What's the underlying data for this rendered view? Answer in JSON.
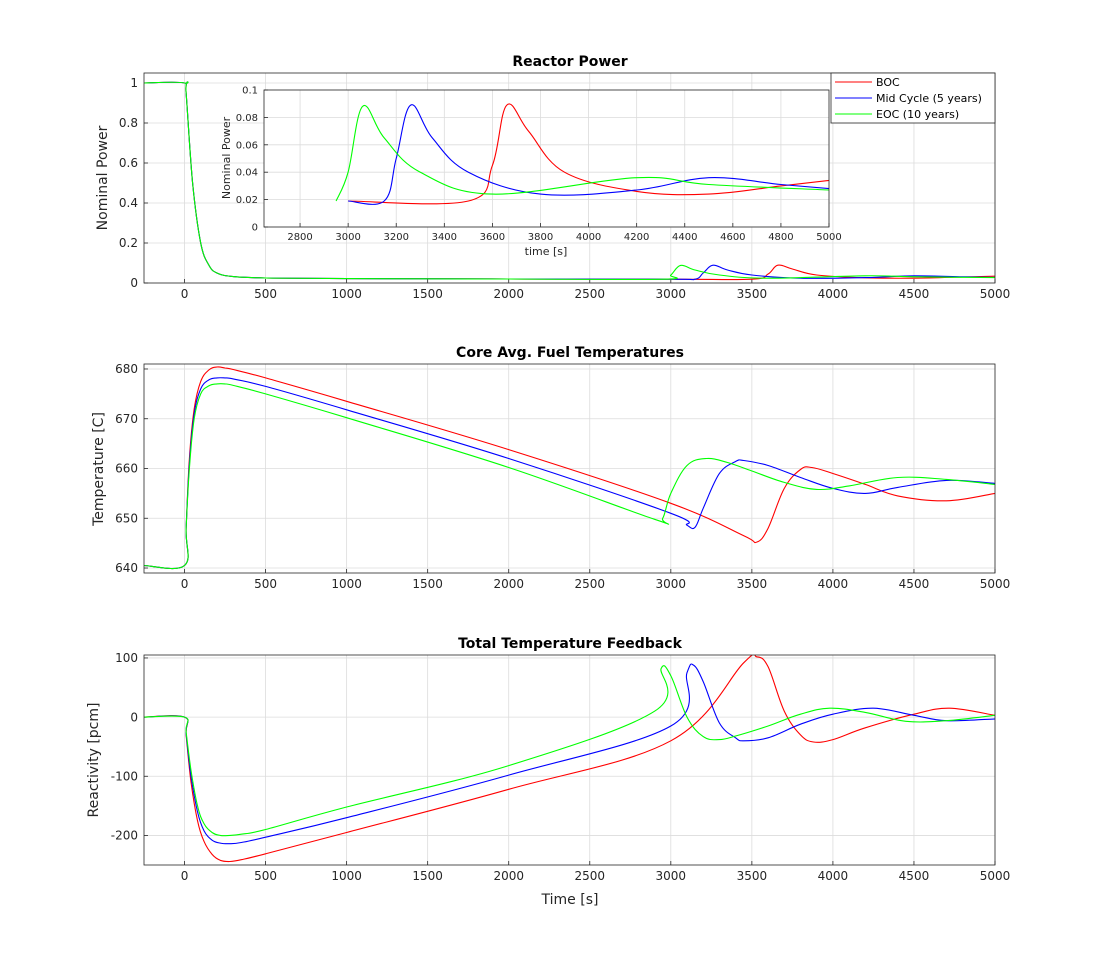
{
  "chart_data": [
    {
      "type": "line",
      "title": "Reactor Power",
      "xlabel": "",
      "ylabel": "Nominal Power",
      "xlim": [
        -250,
        5000
      ],
      "ylim": [
        0,
        1.05
      ],
      "x_ticks": [
        0,
        500,
        1000,
        1500,
        2000,
        2500,
        3000,
        3500,
        4000,
        4500,
        5000
      ],
      "y_ticks": [
        0,
        0.2,
        0.4,
        0.6,
        0.8,
        1
      ],
      "x_tick_labels": [
        "0",
        "500",
        "1000",
        "1500",
        "2000",
        "2500",
        "3000",
        "3500",
        "4000",
        "4500",
        "5000"
      ],
      "y_tick_labels": [
        "0",
        "0.2",
        "0.4",
        "0.6",
        "0.8",
        "1"
      ],
      "grid": true,
      "legend": "top-right",
      "series": [
        {
          "name": "BOC",
          "color": "#ff0000",
          "x": [
            -250,
            0,
            10,
            50,
            100,
            150,
            200,
            300,
            500,
            1000,
            2000,
            3000,
            3500,
            3600,
            3660,
            3750,
            3900,
            4200,
            4500,
            4800,
            5000
          ],
          "y": [
            1,
            1,
            0.95,
            0.5,
            0.2,
            0.09,
            0.05,
            0.032,
            0.025,
            0.022,
            0.02,
            0.019,
            0.019,
            0.045,
            0.089,
            0.07,
            0.04,
            0.026,
            0.024,
            0.03,
            0.034
          ]
        },
        {
          "name": "Mid Cycle (5 years)",
          "color": "#0000ff",
          "x": [
            -250,
            0,
            10,
            50,
            100,
            150,
            200,
            300,
            500,
            1000,
            2000,
            3000,
            3150,
            3200,
            3260,
            3350,
            3500,
            3800,
            4200,
            4500,
            4800,
            5000
          ],
          "y": [
            1,
            1,
            0.95,
            0.5,
            0.2,
            0.09,
            0.05,
            0.032,
            0.025,
            0.022,
            0.02,
            0.019,
            0.019,
            0.05,
            0.089,
            0.065,
            0.04,
            0.024,
            0.027,
            0.036,
            0.031,
            0.028
          ]
        },
        {
          "name": "EOC (10 years)",
          "color": "#00ff00",
          "x": [
            -250,
            0,
            10,
            50,
            100,
            150,
            200,
            300,
            500,
            1000,
            2000,
            2950,
            3000,
            3060,
            3150,
            3300,
            3600,
            4200,
            4500,
            5000
          ],
          "y": [
            1,
            1,
            0.95,
            0.5,
            0.2,
            0.09,
            0.05,
            0.032,
            0.025,
            0.022,
            0.02,
            0.019,
            0.04,
            0.088,
            0.065,
            0.04,
            0.024,
            0.036,
            0.031,
            0.027
          ]
        }
      ],
      "inset": {
        "xlabel": "time [s]",
        "ylabel": "Nominal Power",
        "xlim": [
          2650,
          5000
        ],
        "ylim": [
          0,
          0.1
        ],
        "x_ticks": [
          2800,
          3000,
          3200,
          3400,
          3600,
          3800,
          4000,
          4200,
          4400,
          4600,
          4800,
          5000
        ],
        "y_ticks": [
          0,
          0.02,
          0.04,
          0.06,
          0.08,
          0.1
        ],
        "x_tick_labels": [
          "2800",
          "3000",
          "3200",
          "3400",
          "3600",
          "3800",
          "4000",
          "4200",
          "4400",
          "4600",
          "4800",
          "5000"
        ],
        "y_tick_labels": [
          "0",
          "0.02",
          "0.04",
          "0.06",
          "0.08",
          "0.1"
        ]
      }
    },
    {
      "type": "line",
      "title": "Core Avg. Fuel Temperatures",
      "xlabel": "",
      "ylabel": "Temperature [C]",
      "xlim": [
        -250,
        5000
      ],
      "ylim": [
        639,
        681
      ],
      "x_ticks": [
        0,
        500,
        1000,
        1500,
        2000,
        2500,
        3000,
        3500,
        4000,
        4500,
        5000
      ],
      "y_ticks": [
        640,
        650,
        660,
        670,
        680
      ],
      "x_tick_labels": [
        "0",
        "500",
        "1000",
        "1500",
        "2000",
        "2500",
        "3000",
        "3500",
        "4000",
        "4500",
        "5000"
      ],
      "y_tick_labels": [
        "640",
        "650",
        "660",
        "670",
        "680"
      ],
      "grid": true,
      "series": [
        {
          "name": "BOC",
          "color": "#ff0000",
          "x": [
            -250,
            0,
            10,
            30,
            60,
            100,
            150,
            200,
            250,
            300,
            500,
            1000,
            2000,
            3000,
            3450,
            3530,
            3600,
            3700,
            3800,
            3870,
            4000,
            4200,
            4400,
            4700,
            5000
          ],
          "y": [
            640.5,
            640.5,
            648,
            662,
            672,
            677.5,
            679.8,
            680.4,
            680.2,
            679.9,
            678.2,
            673.5,
            663.8,
            653,
            646.5,
            645.2,
            648,
            656,
            659.8,
            660.2,
            659,
            656.8,
            654.5,
            653.5,
            655
          ]
        },
        {
          "name": "Mid Cycle (5 years)",
          "color": "#0000ff",
          "x": [
            -250,
            0,
            10,
            30,
            60,
            100,
            150,
            200,
            250,
            300,
            500,
            1000,
            2000,
            3000,
            3100,
            3150,
            3200,
            3300,
            3400,
            3450,
            3600,
            3800,
            4000,
            4200,
            4400,
            4700,
            5000
          ],
          "y": [
            640.5,
            640.5,
            648,
            661,
            671,
            676,
            677.8,
            678.2,
            678.2,
            678,
            676.5,
            671.8,
            662,
            651,
            648.6,
            648.2,
            652,
            659,
            661.4,
            661.6,
            660.6,
            658.2,
            656,
            655,
            656.2,
            657.6,
            657
          ]
        },
        {
          "name": "EOC (10 years)",
          "color": "#00ff00",
          "x": [
            -250,
            0,
            10,
            30,
            60,
            100,
            150,
            200,
            250,
            300,
            500,
            1000,
            2000,
            2900,
            2950,
            3000,
            3100,
            3220,
            3350,
            3500,
            3700,
            3900,
            4100,
            4400,
            4700,
            5000
          ],
          "y": [
            640.5,
            640.5,
            648,
            660,
            670,
            675,
            676.6,
            677,
            677,
            676.7,
            675,
            670.2,
            660.2,
            649.8,
            650,
            655,
            660.6,
            662,
            661.2,
            659.5,
            657.2,
            655.8,
            656.5,
            658.2,
            657.8,
            656.8
          ]
        }
      ]
    },
    {
      "type": "line",
      "title": "Total Temperature Feedback",
      "xlabel": "Time [s]",
      "ylabel": "Reactivity [pcm]",
      "xlim": [
        -250,
        5000
      ],
      "ylim": [
        -250,
        105
      ],
      "x_ticks": [
        0,
        500,
        1000,
        1500,
        2000,
        2500,
        3000,
        3500,
        4000,
        4500,
        5000
      ],
      "y_ticks": [
        -200,
        -100,
        0,
        100
      ],
      "x_tick_labels": [
        "0",
        "500",
        "1000",
        "1500",
        "2000",
        "2500",
        "3000",
        "3500",
        "4000",
        "4500",
        "5000"
      ],
      "y_tick_labels": [
        "-200",
        "-100",
        "0",
        "100"
      ],
      "grid": true,
      "series": [
        {
          "name": "BOC",
          "color": "#ff0000",
          "x": [
            -250,
            0,
            10,
            40,
            80,
            120,
            170,
            220,
            280,
            350,
            500,
            1000,
            2000,
            3000,
            3450,
            3530,
            3600,
            3700,
            3800,
            3880,
            4000,
            4200,
            4500,
            4720,
            5000
          ],
          "y": [
            0,
            0,
            -30,
            -110,
            -175,
            -210,
            -232,
            -242,
            -244,
            -241,
            -231,
            -195,
            -122,
            -40,
            92,
            102,
            85,
            10,
            -30,
            -42,
            -38,
            -18,
            5,
            15,
            3
          ]
        },
        {
          "name": "Mid Cycle (5 years)",
          "color": "#0000ff",
          "x": [
            -250,
            0,
            10,
            40,
            80,
            120,
            170,
            220,
            280,
            350,
            500,
            1000,
            2000,
            3000,
            3100,
            3140,
            3200,
            3300,
            3400,
            3450,
            3600,
            3800,
            4000,
            4250,
            4500,
            4700,
            5000
          ],
          "y": [
            0,
            0,
            -28,
            -100,
            -160,
            -192,
            -208,
            -213,
            -214,
            -212,
            -203,
            -170,
            -98,
            -15,
            75,
            88,
            60,
            -10,
            -35,
            -40,
            -35,
            -12,
            5,
            15,
            3,
            -6,
            -3
          ]
        },
        {
          "name": "EOC (10 years)",
          "color": "#00ff00",
          "x": [
            -250,
            0,
            10,
            40,
            80,
            120,
            170,
            220,
            280,
            350,
            500,
            1000,
            2000,
            2900,
            2940,
            3000,
            3100,
            3200,
            3300,
            3400,
            3600,
            3800,
            3980,
            4200,
            4450,
            4700,
            5000
          ],
          "y": [
            0,
            0,
            -25,
            -90,
            -150,
            -180,
            -195,
            -200,
            -200,
            -198,
            -190,
            -152,
            -82,
            10,
            82,
            70,
            0,
            -33,
            -38,
            -32,
            -15,
            5,
            15,
            8,
            -7,
            -6,
            3
          ]
        }
      ]
    }
  ]
}
